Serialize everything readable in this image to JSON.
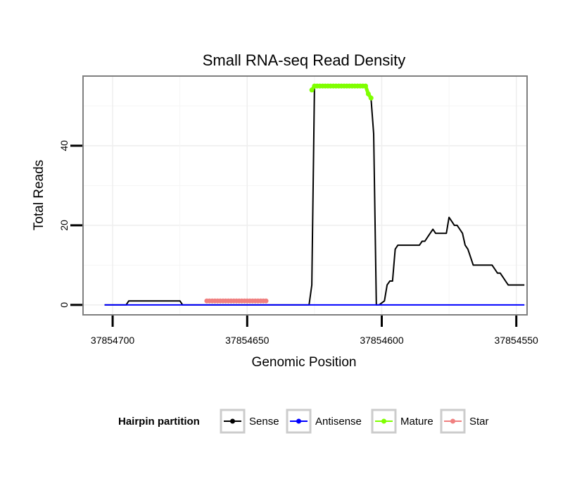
{
  "chart_data": {
    "type": "line",
    "title": "Small RNA-seq Read Density",
    "xlabel": "Genomic Position",
    "ylabel": "Total Reads",
    "x_reversed": true,
    "xlim": [
      37854711,
      37854546
    ],
    "ylim": [
      -2.5,
      57.5
    ],
    "x_ticks": [
      37854700,
      37854650,
      37854600,
      37854550
    ],
    "x_tick_labels": [
      "37854700",
      "37854650",
      "37854600",
      "37854550"
    ],
    "y_ticks": [
      0,
      20,
      40
    ],
    "y_tick_labels": [
      "0",
      "20",
      "40"
    ],
    "grid": true,
    "legend": {
      "title": "Hairpin partition",
      "position": "bottom",
      "entries": [
        {
          "name": "Sense",
          "color": "#000000"
        },
        {
          "name": "Antisense",
          "color": "#0000ff"
        },
        {
          "name": "Mature",
          "color": "#7fff00"
        },
        {
          "name": "Star",
          "color": "#f08080"
        }
      ]
    },
    "series": [
      {
        "name": "Sense",
        "color": "#000000",
        "x": [
          37854703,
          37854695,
          37854694,
          37854675,
          37854674,
          37854660,
          37854640,
          37854627,
          37854626,
          37854625,
          37854624,
          37854623,
          37854622,
          37854606,
          37854605,
          37854604,
          37854603,
          37854602,
          37854601,
          37854599,
          37854598,
          37854597,
          37854596,
          37854595,
          37854594,
          37854593,
          37854592,
          37854591,
          37854590,
          37854589,
          37854588,
          37854587,
          37854586,
          37854585,
          37854584,
          37854583,
          37854582,
          37854581,
          37854580,
          37854579,
          37854578,
          37854577,
          37854576,
          37854575,
          37854574,
          37854573,
          37854572,
          37854571,
          37854570,
          37854569,
          37854568,
          37854567,
          37854566,
          37854565,
          37854564,
          37854563,
          37854562,
          37854561,
          37854560,
          37854559,
          37854558,
          37854557,
          37854556,
          37854555,
          37854554,
          37854553,
          37854552,
          37854551,
          37854550,
          37854549,
          37854548,
          37854547
        ],
        "y": [
          0,
          0,
          1,
          1,
          0,
          0,
          0,
          0,
          5,
          55,
          55,
          55,
          55,
          55,
          53,
          52,
          43,
          0,
          0,
          1,
          5,
          6,
          6,
          14,
          15,
          15,
          15,
          15,
          15,
          15,
          15,
          15,
          15,
          16,
          16,
          17,
          18,
          19,
          18,
          18,
          18,
          18,
          18,
          22,
          21,
          20,
          20,
          19,
          18,
          15,
          14,
          12,
          10,
          10,
          10,
          10,
          10,
          10,
          10,
          10,
          9,
          8,
          8,
          7,
          6,
          5,
          5,
          5,
          5,
          5,
          5,
          5
        ]
      },
      {
        "name": "Antisense",
        "color": "#0000ff",
        "x": [
          37854703,
          37854547
        ],
        "y": [
          0,
          0
        ]
      },
      {
        "name": "Mature",
        "color": "#7fff00",
        "x": [
          37854626,
          37854625,
          37854624,
          37854623,
          37854622,
          37854621,
          37854620,
          37854619,
          37854618,
          37854617,
          37854616,
          37854615,
          37854614,
          37854613,
          37854612,
          37854611,
          37854610,
          37854609,
          37854608,
          37854607,
          37854606,
          37854605,
          37854604
        ],
        "y": [
          54,
          55,
          55,
          55,
          55,
          55,
          55,
          55,
          55,
          55,
          55,
          55,
          55,
          55,
          55,
          55,
          55,
          55,
          55,
          55,
          55,
          53,
          52
        ]
      },
      {
        "name": "Star",
        "color": "#f08080",
        "x": [
          37854665,
          37854664,
          37854663,
          37854662,
          37854661,
          37854660,
          37854659,
          37854658,
          37854657,
          37854656,
          37854655,
          37854654,
          37854653,
          37854652,
          37854651,
          37854650,
          37854649,
          37854648,
          37854647,
          37854646,
          37854645,
          37854644,
          37854643
        ],
        "y": [
          1,
          1,
          1,
          1,
          1,
          1,
          1,
          1,
          1,
          1,
          1,
          1,
          1,
          1,
          1,
          1,
          1,
          1,
          1,
          1,
          1,
          1,
          1
        ]
      }
    ]
  }
}
